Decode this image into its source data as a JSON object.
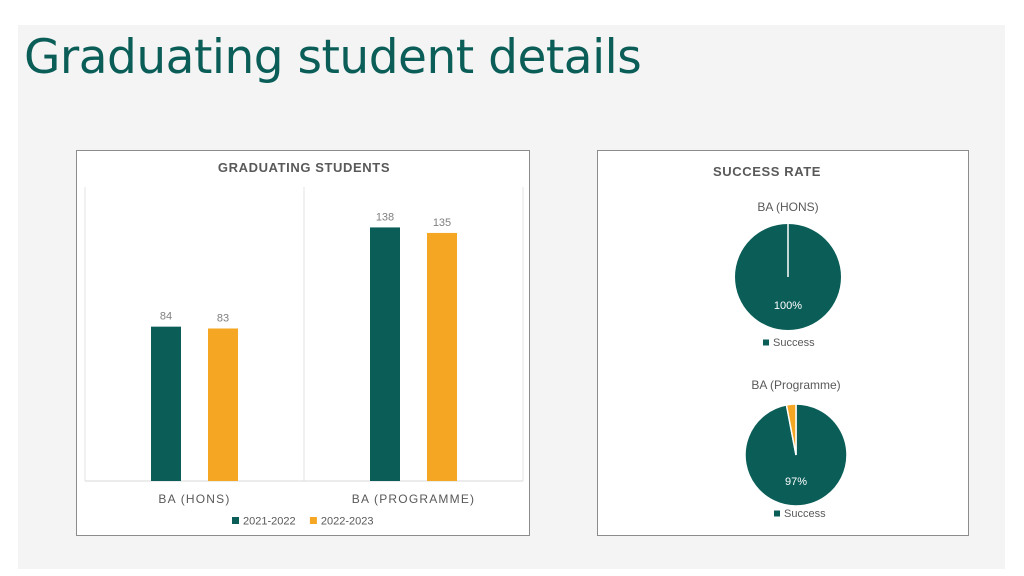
{
  "page": {
    "title": "Graduating student details"
  },
  "colors": {
    "title": "#0b5e58",
    "series_2021": "#0b5e58",
    "series_2022": "#f5a623",
    "panel_bg": "#f4f4f4"
  },
  "chart_data": [
    {
      "type": "bar",
      "title": "GRADUATING STUDENTS",
      "categories": [
        "BA (HONS)",
        "BA (PROGRAMME)"
      ],
      "series": [
        {
          "name": "2021-2022",
          "values": [
            84,
            138
          ],
          "color": "#0b5e58"
        },
        {
          "name": "2022-2023",
          "values": [
            83,
            135
          ],
          "color": "#f5a623"
        }
      ],
      "ylim": [
        0,
        160
      ],
      "legend": "bottom",
      "grid": false
    },
    {
      "type": "pie",
      "title": "SUCCESS RATE",
      "pies": [
        {
          "title": "BA (HONS)",
          "slices": [
            {
              "label": "Success",
              "value": 100,
              "color": "#0b5e58",
              "data_label": "100%"
            }
          ],
          "legend": [
            "Success"
          ]
        },
        {
          "title": "BA (Programme)",
          "slices": [
            {
              "label": "Success",
              "value": 97,
              "color": "#0b5e58",
              "data_label": "97%"
            },
            {
              "label": "",
              "value": 3,
              "color": "#f5a623",
              "data_label": ""
            }
          ],
          "legend": [
            "Success"
          ]
        }
      ],
      "legend": "bottom"
    }
  ]
}
